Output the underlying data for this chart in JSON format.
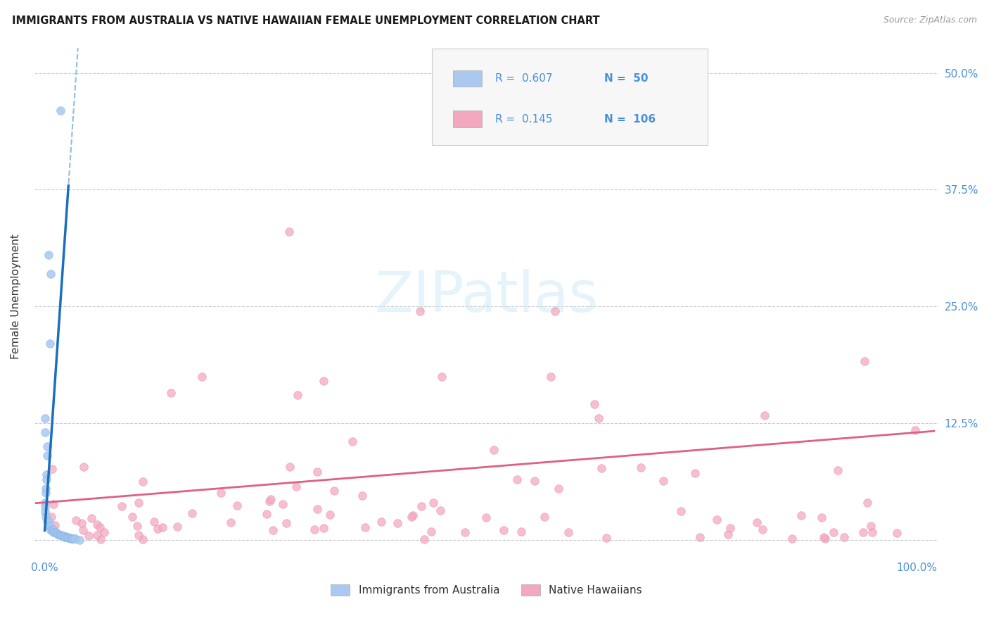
{
  "title": "IMMIGRANTS FROM AUSTRALIA VS NATIVE HAWAIIAN FEMALE UNEMPLOYMENT CORRELATION CHART",
  "source": "Source: ZipAtlas.com",
  "ylabel": "Female Unemployment",
  "r_blue": 0.607,
  "n_blue": 50,
  "r_pink": 0.145,
  "n_pink": 106,
  "blue_color": "#aac8f0",
  "pink_color": "#f4a8c0",
  "trendline_blue": "#1a6fbd",
  "trendline_blue_dash": "#90bce8",
  "trendline_pink": "#e06080",
  "watermark": "ZIPatlas",
  "legend_label_blue": "Immigrants from Australia",
  "legend_label_pink": "Native Hawaiians",
  "axis_label_color": "#4a90d9",
  "text_color": "#333333",
  "grid_color": "#cccccc",
  "legend_bg": "#f7f7f7",
  "legend_border": "#cccccc"
}
